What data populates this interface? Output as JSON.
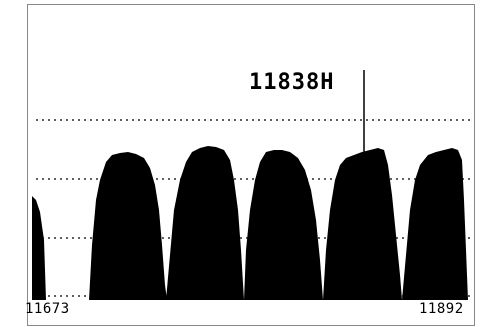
{
  "display": {
    "marker_readout": "11838H",
    "axis_left": "11673",
    "axis_right": "11892"
  },
  "colors": {
    "trace": "#000000",
    "background": "#ffffff",
    "grid": "#000000"
  }
}
